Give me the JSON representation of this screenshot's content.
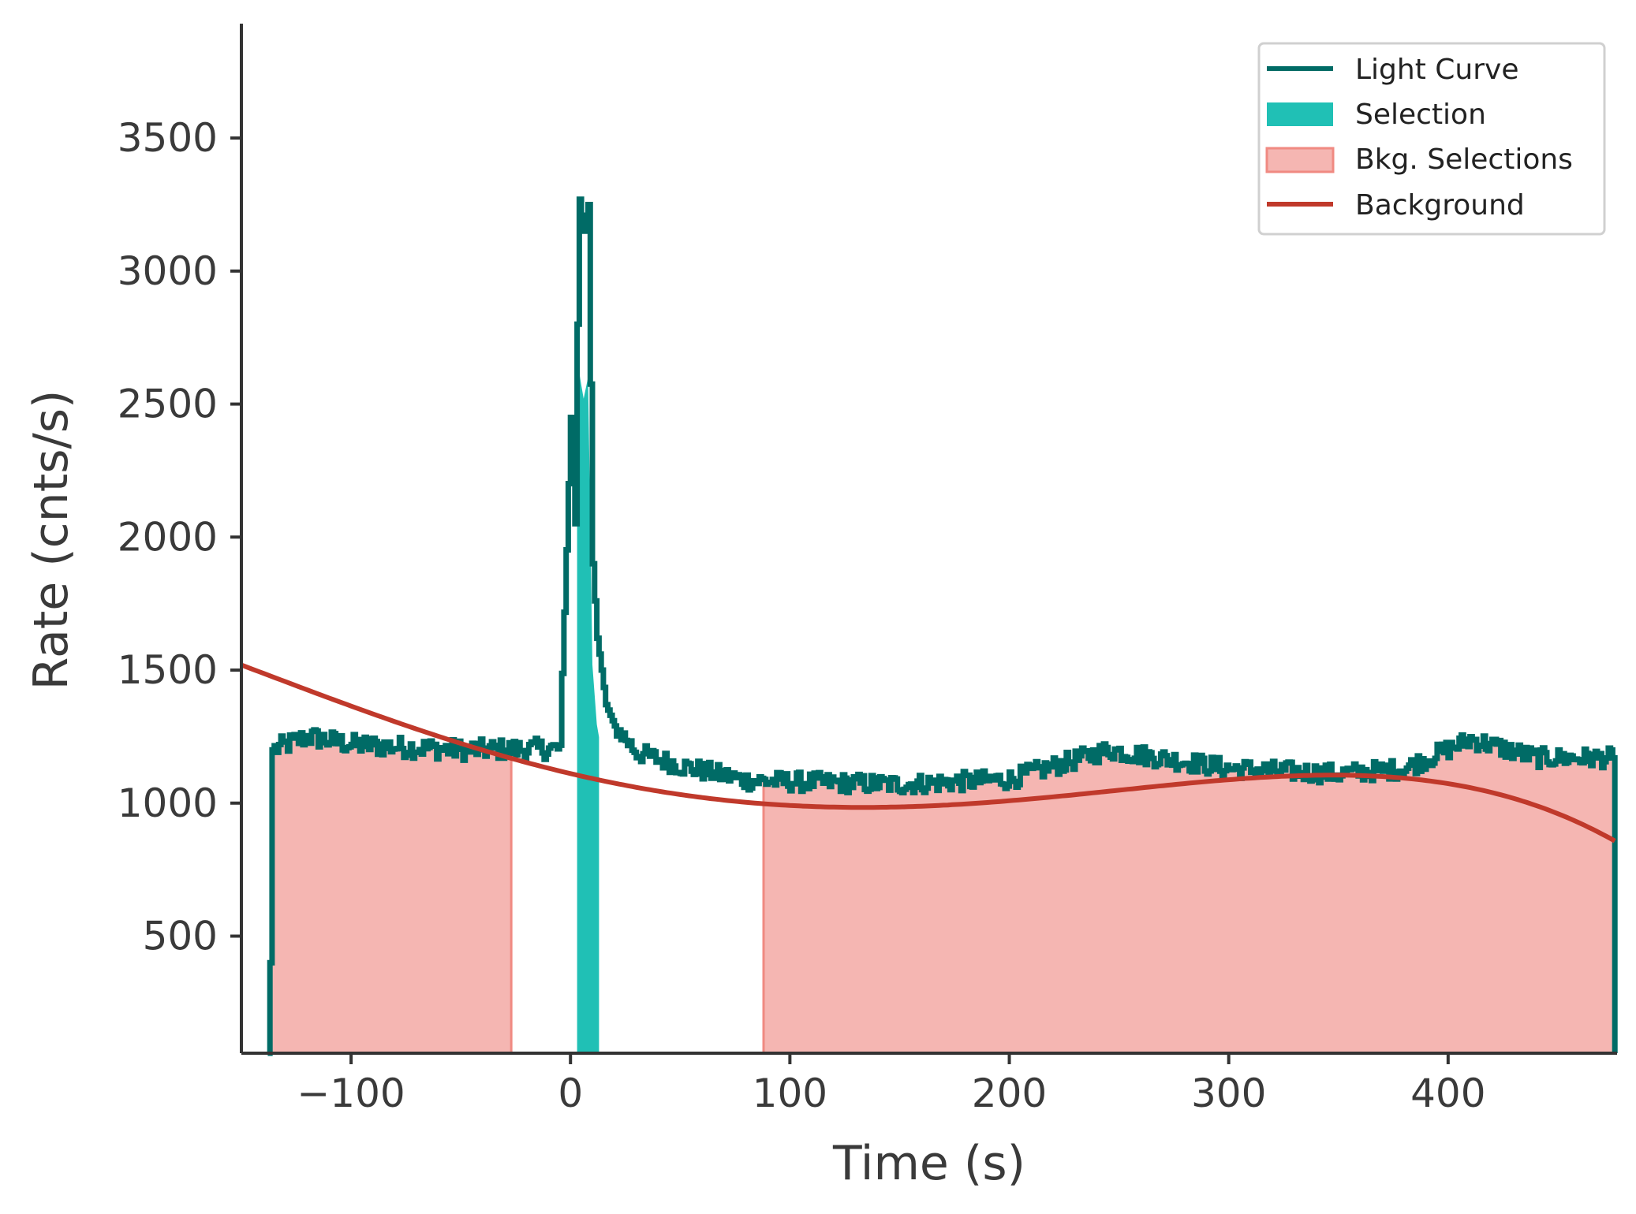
{
  "chart_data": {
    "type": "line",
    "xlabel": "Time (s)",
    "ylabel": "Rate (cnts/s)",
    "xlim": [
      -150,
      477
    ],
    "ylim": [
      60,
      3930
    ],
    "xticks": [
      -100,
      0,
      100,
      200,
      300,
      400
    ],
    "xtick_labels": [
      "−100",
      "0",
      "100",
      "200",
      "300",
      "400"
    ],
    "yticks": [
      500,
      1000,
      1500,
      2000,
      2500,
      3000,
      3500
    ],
    "ytick_labels": [
      "500",
      "1000",
      "1500",
      "2000",
      "2500",
      "3000",
      "3500"
    ],
    "legend_position": "top-right",
    "legend": [
      {
        "label": "Light Curve",
        "kind": "line",
        "color": "#006b66"
      },
      {
        "label": "Selection",
        "kind": "patch",
        "color": "#20c0b5"
      },
      {
        "label": "Bkg. Selections",
        "kind": "patch",
        "color": "#f5b6b2",
        "edge": "#f08a82"
      },
      {
        "label": "Background",
        "kind": "line",
        "color": "#c0392b"
      }
    ],
    "colors": {
      "light_curve": "#006b66",
      "selection": "#20c0b5",
      "bkg_fill": "#f5b6b2",
      "bkg_edge": "#f08a82",
      "background": "#c0392b",
      "axes": "#333333"
    },
    "selection": [
      3,
      13
    ],
    "bkg_selections": [
      [
        -137,
        -27
      ],
      [
        88,
        477
      ]
    ],
    "background_poly": [
      1111,
      -1.94,
      0.00703,
      7.2e-06,
      -3.31e-08
    ],
    "light_curve_key_points": [
      {
        "t": -138,
        "rate": 60
      },
      {
        "t": -137,
        "rate": 400
      },
      {
        "t": -136,
        "rate": 1200
      },
      {
        "t": -120,
        "rate": 1250
      },
      {
        "t": -100,
        "rate": 1220
      },
      {
        "t": -50,
        "rate": 1200
      },
      {
        "t": -5,
        "rate": 1205
      },
      {
        "t": 0,
        "rate": 2450
      },
      {
        "t": 2,
        "rate": 2050
      },
      {
        "t": 3,
        "rate": 2800
      },
      {
        "t": 4,
        "rate": 3270
      },
      {
        "t": 6,
        "rate": 3150
      },
      {
        "t": 8,
        "rate": 3250
      },
      {
        "t": 10,
        "rate": 1900
      },
      {
        "t": 12,
        "rate": 1620
      },
      {
        "t": 14,
        "rate": 1500
      },
      {
        "t": 16,
        "rate": 1370
      },
      {
        "t": 20,
        "rate": 1290
      },
      {
        "t": 30,
        "rate": 1190
      },
      {
        "t": 50,
        "rate": 1140
      },
      {
        "t": 80,
        "rate": 1085
      },
      {
        "t": 150,
        "rate": 1070
      },
      {
        "t": 200,
        "rate": 1090
      },
      {
        "t": 245,
        "rate": 1200
      },
      {
        "t": 300,
        "rate": 1130
      },
      {
        "t": 350,
        "rate": 1110
      },
      {
        "t": 380,
        "rate": 1130
      },
      {
        "t": 410,
        "rate": 1240
      },
      {
        "t": 440,
        "rate": 1170
      },
      {
        "t": 475,
        "rate": 1170
      },
      {
        "t": 476,
        "rate": 60
      }
    ]
  }
}
